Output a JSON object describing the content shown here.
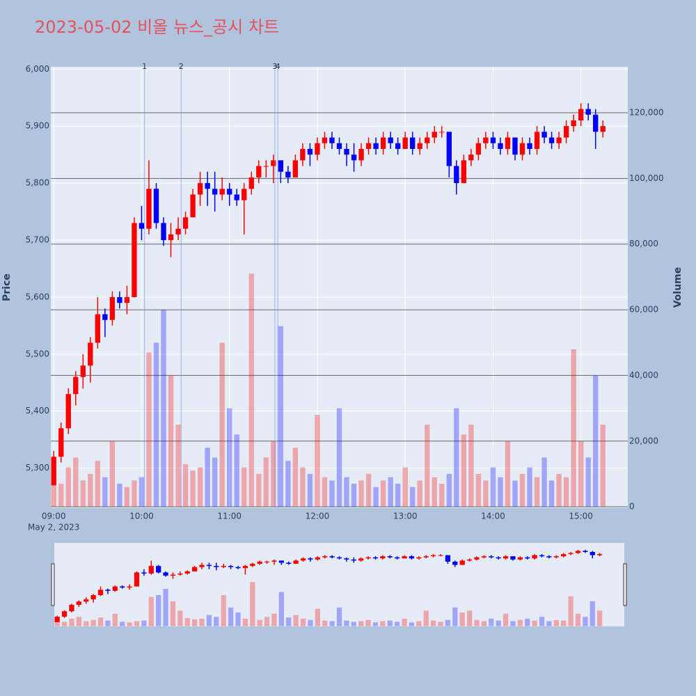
{
  "chart_data": {
    "type": "candlestick",
    "title": "2023-05-02 비올 뉴스_공시 차트",
    "date_label": "May 2, 2023",
    "y_title": "Price",
    "y2_title": "Volume",
    "increasing_color": "#ff0000",
    "decreasing_color": "#0000ff",
    "grid": true,
    "xlim": [
      "08:58",
      "15:32"
    ],
    "xticks": [
      "09:00",
      "10:00",
      "11:00",
      "12:00",
      "13:00",
      "14:00",
      "15:00"
    ],
    "ylim": [
      5230,
      6004
    ],
    "yticks": [
      {
        "value": 5300,
        "label": "5,300"
      },
      {
        "value": 5400,
        "label": "5,400"
      },
      {
        "value": 5500,
        "label": "5,500"
      },
      {
        "value": 5600,
        "label": "5,600"
      },
      {
        "value": 5700,
        "label": "5,700"
      },
      {
        "value": 5800,
        "label": "5,800"
      },
      {
        "value": 5900,
        "label": "5,900"
      },
      {
        "value": 6000,
        "label": "6,000"
      }
    ],
    "y2lim": [
      -400,
      134000
    ],
    "y2ticks": [
      0,
      {
        "value": 20000,
        "label": "20,000"
      },
      {
        "value": 40000,
        "label": "40,000"
      },
      {
        "value": 60000,
        "label": "60,000"
      },
      {
        "value": 80000,
        "label": "80,000"
      },
      {
        "value": 100000,
        "label": "100,000"
      },
      {
        "value": 120000,
        "label": "120,000"
      }
    ],
    "news": [
      {
        "label": "1",
        "x": "10:02"
      },
      {
        "label": "2",
        "x": "10:27"
      },
      {
        "label": "3",
        "x": "11:31"
      },
      {
        "label": "4",
        "x": "11:33"
      }
    ],
    "x": [
      "09:00",
      "09:05",
      "09:10",
      "09:15",
      "09:20",
      "09:25",
      "09:30",
      "09:35",
      "09:40",
      "09:45",
      "09:50",
      "09:55",
      "10:00",
      "10:05",
      "10:10",
      "10:15",
      "10:20",
      "10:25",
      "10:30",
      "10:35",
      "10:40",
      "10:45",
      "10:50",
      "10:55",
      "11:00",
      "11:05",
      "11:10",
      "11:15",
      "11:20",
      "11:25",
      "11:30",
      "11:35",
      "11:40",
      "11:45",
      "11:50",
      "11:55",
      "12:00",
      "12:05",
      "12:10",
      "12:15",
      "12:20",
      "12:25",
      "12:30",
      "12:35",
      "12:40",
      "12:45",
      "12:50",
      "12:55",
      "13:00",
      "13:05",
      "13:10",
      "13:15",
      "13:20",
      "13:25",
      "13:30",
      "13:35",
      "13:40",
      "13:45",
      "13:50",
      "13:55",
      "14:00",
      "14:05",
      "14:10",
      "14:15",
      "14:20",
      "14:25",
      "14:30",
      "14:35",
      "14:40",
      "14:45",
      "14:50",
      "14:55",
      "15:00",
      "15:05",
      "15:10",
      "15:15"
    ],
    "open": [
      5270,
      5320,
      5370,
      5430,
      5460,
      5480,
      5520,
      5570,
      5560,
      5600,
      5590,
      5600,
      5730,
      5720,
      5790,
      5730,
      5700,
      5710,
      5720,
      5740,
      5780,
      5800,
      5790,
      5780,
      5790,
      5780,
      5770,
      5790,
      5810,
      5830,
      5830,
      5840,
      5820,
      5810,
      5840,
      5860,
      5850,
      5870,
      5880,
      5870,
      5860,
      5850,
      5840,
      5860,
      5870,
      5860,
      5880,
      5870,
      5860,
      5880,
      5860,
      5870,
      5880,
      5890,
      5890,
      5830,
      5800,
      5840,
      5850,
      5870,
      5880,
      5870,
      5860,
      5880,
      5850,
      5870,
      5860,
      5890,
      5880,
      5870,
      5880,
      5900,
      5910,
      5930,
      5920,
      5890
    ],
    "high": [
      5330,
      5380,
      5440,
      5470,
      5500,
      5530,
      5600,
      5580,
      5610,
      5610,
      5620,
      5740,
      5760,
      5840,
      5800,
      5740,
      5730,
      5740,
      5750,
      5790,
      5820,
      5820,
      5820,
      5810,
      5800,
      5790,
      5800,
      5820,
      5840,
      5840,
      5850,
      5840,
      5830,
      5850,
      5870,
      5870,
      5880,
      5890,
      5890,
      5880,
      5870,
      5870,
      5870,
      5880,
      5880,
      5890,
      5890,
      5880,
      5890,
      5890,
      5880,
      5890,
      5900,
      5900,
      5890,
      5840,
      5850,
      5860,
      5880,
      5890,
      5890,
      5880,
      5890,
      5880,
      5880,
      5880,
      5900,
      5900,
      5890,
      5890,
      5910,
      5920,
      5940,
      5940,
      5930,
      5910
    ],
    "low": [
      5270,
      5310,
      5360,
      5410,
      5440,
      5450,
      5510,
      5530,
      5550,
      5580,
      5570,
      5600,
      5700,
      5710,
      5720,
      5690,
      5670,
      5700,
      5710,
      5740,
      5760,
      5760,
      5750,
      5770,
      5760,
      5760,
      5710,
      5780,
      5800,
      5810,
      5800,
      5800,
      5800,
      5810,
      5830,
      5830,
      5840,
      5860,
      5860,
      5850,
      5830,
      5820,
      5830,
      5850,
      5850,
      5850,
      5860,
      5850,
      5860,
      5850,
      5850,
      5860,
      5870,
      5880,
      5810,
      5780,
      5800,
      5830,
      5840,
      5860,
      5860,
      5850,
      5850,
      5840,
      5840,
      5850,
      5850,
      5870,
      5860,
      5860,
      5870,
      5890,
      5900,
      5910,
      5860,
      5880
    ],
    "close": [
      5320,
      5370,
      5430,
      5460,
      5480,
      5520,
      5570,
      5560,
      5600,
      5590,
      5600,
      5730,
      5720,
      5790,
      5730,
      5700,
      5710,
      5720,
      5740,
      5780,
      5800,
      5790,
      5780,
      5790,
      5780,
      5770,
      5790,
      5810,
      5830,
      5830,
      5840,
      5820,
      5810,
      5840,
      5860,
      5850,
      5870,
      5880,
      5870,
      5860,
      5850,
      5840,
      5860,
      5870,
      5860,
      5880,
      5870,
      5860,
      5880,
      5860,
      5870,
      5880,
      5890,
      5890,
      5830,
      5800,
      5840,
      5850,
      5870,
      5880,
      5870,
      5860,
      5880,
      5850,
      5870,
      5860,
      5890,
      5880,
      5870,
      5880,
      5900,
      5910,
      5930,
      5920,
      5890,
      5900
    ],
    "volume": [
      9000,
      7000,
      12000,
      15000,
      8000,
      10000,
      14000,
      9000,
      20000,
      7000,
      6000,
      8000,
      9000,
      47000,
      50000,
      60000,
      40000,
      25000,
      13000,
      11000,
      12000,
      18000,
      15000,
      50000,
      30000,
      22000,
      12000,
      71000,
      10000,
      15000,
      20000,
      55000,
      14000,
      18000,
      12000,
      10000,
      28000,
      9000,
      8000,
      30000,
      9000,
      7000,
      8000,
      10000,
      6000,
      8000,
      9000,
      7000,
      12000,
      6000,
      8000,
      25000,
      9000,
      7000,
      10000,
      30000,
      22000,
      25000,
      10000,
      8000,
      12000,
      9000,
      20000,
      8000,
      10000,
      12000,
      9000,
      15000,
      8000,
      10000,
      9000,
      48000,
      20000,
      15000,
      40000,
      25000
    ]
  }
}
